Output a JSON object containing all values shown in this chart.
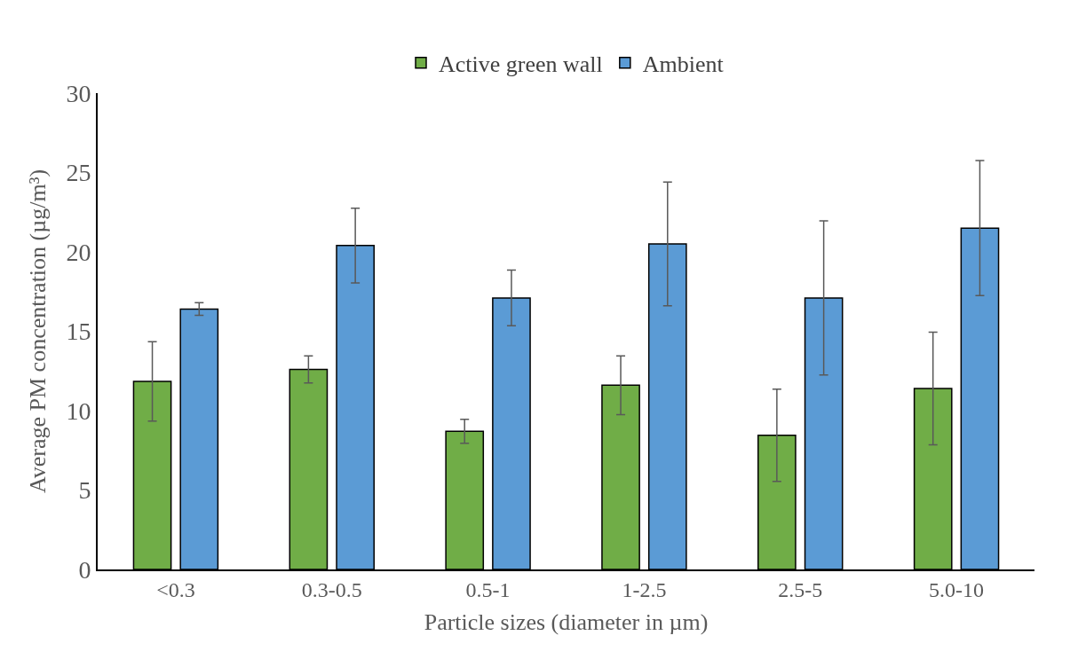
{
  "chart_data": {
    "type": "bar",
    "xlabel": "Particle sizes (diameter in µm)",
    "ylabel": "Average PM concentration (µg/m³)",
    "categories": [
      "<0.3",
      "0.3-0.5",
      "0.5-1",
      "1-2.5",
      "2.5-5",
      "5.0-10"
    ],
    "series": [
      {
        "name": "Active green wall",
        "color": "#70ad47",
        "values": [
          11.85,
          12.6,
          8.7,
          11.6,
          8.45,
          11.4
        ],
        "errors": [
          2.5,
          0.85,
          0.75,
          1.85,
          2.9,
          3.55
        ]
      },
      {
        "name": "Ambient",
        "color": "#5b9bd5",
        "values": [
          16.4,
          20.4,
          17.1,
          20.5,
          17.1,
          21.5
        ],
        "errors": [
          0.4,
          2.35,
          1.75,
          3.9,
          4.85,
          4.25
        ]
      }
    ],
    "ylim": [
      0,
      30
    ],
    "yticks": [
      0,
      5,
      10,
      15,
      20,
      25,
      30
    ],
    "legend": "top"
  }
}
